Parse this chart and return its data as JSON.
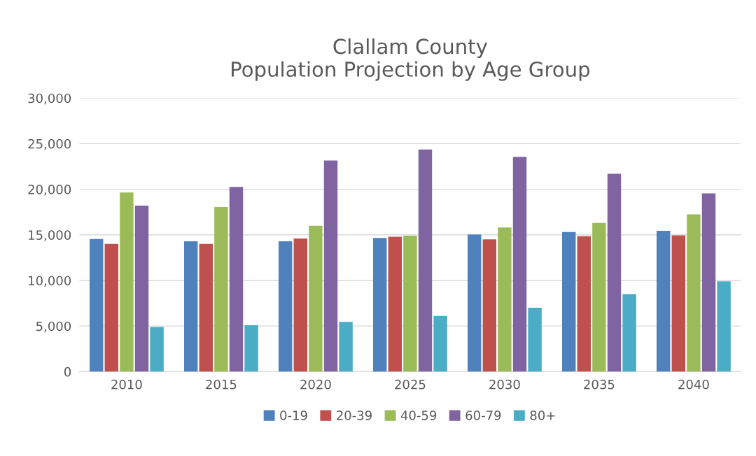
{
  "chart_data": {
    "type": "bar",
    "title": "Clallam County\nPopulation Projection by Age Group",
    "categories": [
      "2010",
      "2015",
      "2020",
      "2025",
      "2030",
      "2035",
      "2040"
    ],
    "series": [
      {
        "name": "0-19",
        "color": "#4f81bd",
        "values": [
          14550,
          14300,
          14300,
          14650,
          15050,
          15300,
          15450
        ]
      },
      {
        "name": "20-39",
        "color": "#c0504d",
        "values": [
          14000,
          14000,
          14600,
          14800,
          14500,
          14850,
          14950
        ]
      },
      {
        "name": "40-59",
        "color": "#9bbb59",
        "values": [
          19650,
          18050,
          16000,
          14900,
          15800,
          16300,
          17250
        ]
      },
      {
        "name": "60-79",
        "color": "#8064a2",
        "values": [
          18200,
          20250,
          23150,
          24350,
          23550,
          21700,
          19550
        ]
      },
      {
        "name": "80+",
        "color": "#4bacc6",
        "values": [
          4900,
          5100,
          5450,
          6100,
          7000,
          8500,
          9900
        ]
      }
    ],
    "ylim": [
      0,
      30000
    ],
    "yticks": [
      {
        "value": 0,
        "label": "0"
      },
      {
        "value": 5000,
        "label": "5,000"
      },
      {
        "value": 10000,
        "label": "10,000"
      },
      {
        "value": 15000,
        "label": "15,000"
      },
      {
        "value": 20000,
        "label": "20,000"
      },
      {
        "value": 25000,
        "label": "25,000"
      },
      {
        "value": 30000,
        "label": "30,000"
      }
    ],
    "grid": "y",
    "legend": "bottom"
  }
}
